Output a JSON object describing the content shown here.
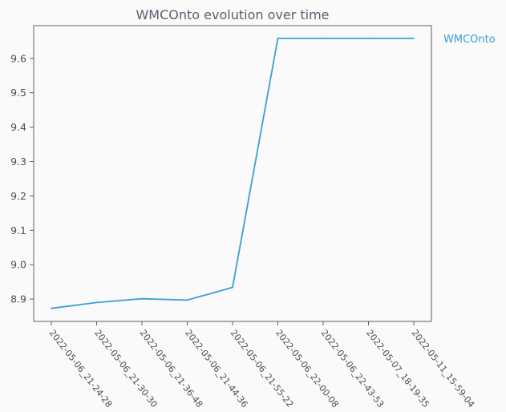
{
  "chart_data": {
    "type": "line",
    "title": "WMCOnto evolution over time",
    "xlabel": "",
    "ylabel": "",
    "categories": [
      "2022-05-06_21-24-28",
      "2022-05-06_21-30-30",
      "2022-05-06_21-36-48",
      "2022-05-06_21-44-36",
      "2022-05-06_21-55-22",
      "2022-05-06_22-00-08",
      "2022-05-06_22-43-53",
      "2022-05-07_18-19-35",
      "2022-05-11_15-59-04"
    ],
    "series": [
      {
        "name": "WMCOnto",
        "values": [
          8.873,
          8.89,
          8.901,
          8.897,
          8.934,
          9.658,
          9.658,
          9.658,
          9.658
        ],
        "color": "#3aa0d0"
      }
    ],
    "ylim": [
      8.835,
      9.695
    ],
    "yticks": [
      8.9,
      9.0,
      9.1,
      9.2,
      9.3,
      9.4,
      9.5,
      9.6
    ],
    "ytick_labels": [
      "8.9",
      "9.0",
      "9.1",
      "9.2",
      "9.3",
      "9.4",
      "9.5",
      "9.6"
    ],
    "grid": false,
    "legend_position": "right",
    "colors": {
      "axes": "#58606c",
      "text": "#4a4f57",
      "background": "#fafafa"
    }
  }
}
